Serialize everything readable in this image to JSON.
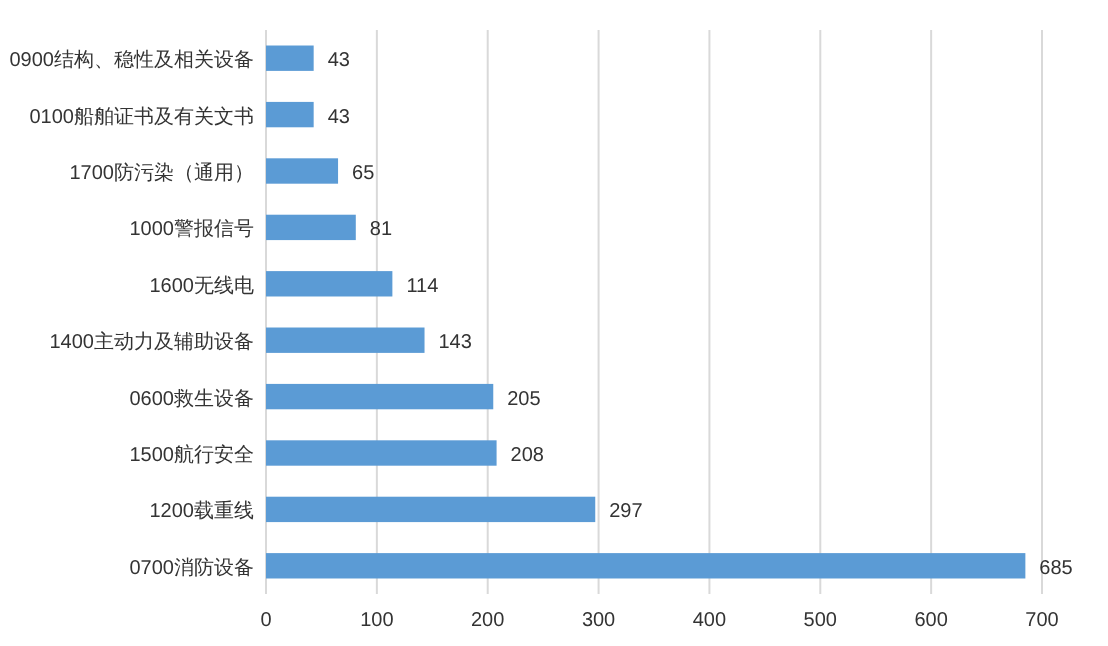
{
  "chart_data": {
    "type": "bar",
    "orientation": "horizontal",
    "categories": [
      "0900结构、稳性及相关设备",
      "0100船舶证书及有关文书",
      "1700防污染（通用）",
      "1000警报信号",
      "1600无线电",
      "1400主动力及辅助设备",
      "0600救生设备",
      "1500航行安全",
      "1200载重线",
      "0700消防设备"
    ],
    "values": [
      43,
      43,
      65,
      81,
      114,
      143,
      205,
      208,
      297,
      685
    ],
    "color": "#5b9bd5",
    "xlim": [
      0,
      700
    ],
    "xticks": [
      0,
      100,
      200,
      300,
      400,
      500,
      600,
      700
    ],
    "grid": "x",
    "data_labels": true
  }
}
